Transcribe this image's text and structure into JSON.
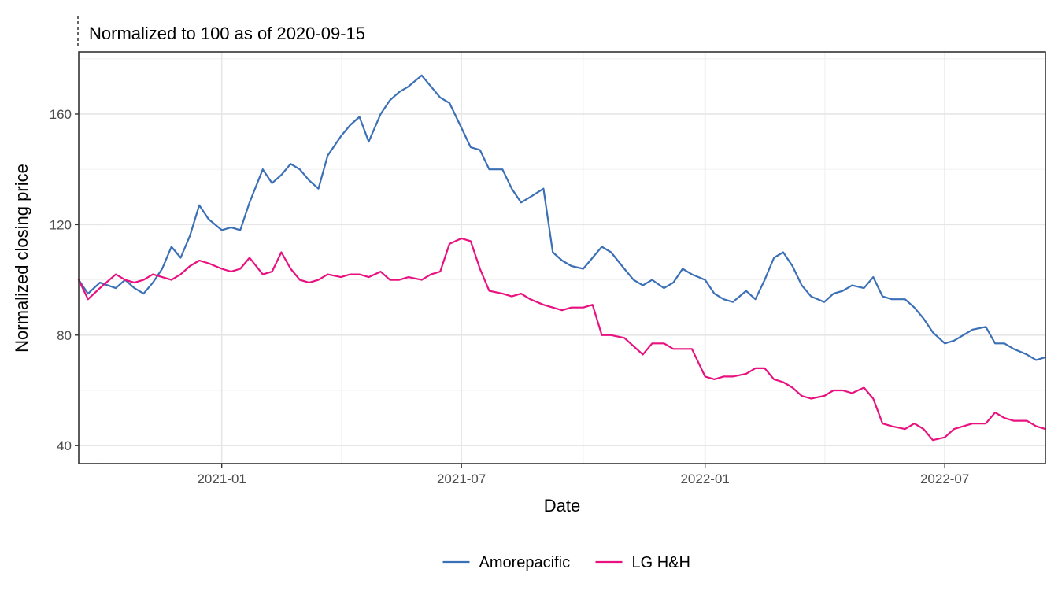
{
  "chart_data": {
    "type": "line",
    "subtitle": "Normalized to 100 as of 2020-09-15",
    "xlabel": "Date",
    "ylabel": "Normalized closing price",
    "xlim": [
      "2020-09-15",
      "2022-09-15"
    ],
    "ylim": [
      33.5,
      182.5
    ],
    "x_ticks": [
      "2021-01-01",
      "2021-07-01",
      "2022-01-01",
      "2022-07-01"
    ],
    "x_tick_labels": [
      "2021-01",
      "2021-07",
      "2022-01",
      "2022-07"
    ],
    "y_ticks": [
      40,
      80,
      120,
      160
    ],
    "y_tick_labels": [
      "40",
      "80",
      "120",
      "160"
    ],
    "grid": true,
    "legend_position": "bottom",
    "series": [
      {
        "name": "Amorepacific",
        "color": "#3b6fb6",
        "x": [
          "2020-09-15",
          "2020-09-22",
          "2020-10-01",
          "2020-10-13",
          "2020-10-20",
          "2020-10-27",
          "2020-11-03",
          "2020-11-10",
          "2020-11-17",
          "2020-11-24",
          "2020-12-01",
          "2020-12-08",
          "2020-12-15",
          "2020-12-22",
          "2021-01-01",
          "2021-01-08",
          "2021-01-15",
          "2021-01-22",
          "2021-02-01",
          "2021-02-08",
          "2021-02-15",
          "2021-02-22",
          "2021-03-01",
          "2021-03-08",
          "2021-03-15",
          "2021-03-22",
          "2021-04-01",
          "2021-04-08",
          "2021-04-15",
          "2021-04-22",
          "2021-05-01",
          "2021-05-08",
          "2021-05-15",
          "2021-05-22",
          "2021-06-01",
          "2021-06-08",
          "2021-06-15",
          "2021-06-22",
          "2021-07-01",
          "2021-07-08",
          "2021-07-15",
          "2021-07-22",
          "2021-08-01",
          "2021-08-08",
          "2021-08-15",
          "2021-08-22",
          "2021-09-01",
          "2021-09-08",
          "2021-09-15",
          "2021-09-22",
          "2021-10-01",
          "2021-10-08",
          "2021-10-15",
          "2021-10-22",
          "2021-11-01",
          "2021-11-08",
          "2021-11-15",
          "2021-11-22",
          "2021-12-01",
          "2021-12-08",
          "2021-12-15",
          "2021-12-22",
          "2022-01-01",
          "2022-01-08",
          "2022-01-15",
          "2022-01-22",
          "2022-02-01",
          "2022-02-08",
          "2022-02-15",
          "2022-02-22",
          "2022-03-01",
          "2022-03-08",
          "2022-03-15",
          "2022-03-22",
          "2022-04-01",
          "2022-04-08",
          "2022-04-15",
          "2022-04-22",
          "2022-05-01",
          "2022-05-08",
          "2022-05-15",
          "2022-05-22",
          "2022-06-01",
          "2022-06-08",
          "2022-06-15",
          "2022-06-22",
          "2022-07-01",
          "2022-07-08",
          "2022-07-15",
          "2022-07-22",
          "2022-08-01",
          "2022-08-08",
          "2022-08-15",
          "2022-08-22",
          "2022-09-01",
          "2022-09-08",
          "2022-09-15"
        ],
        "values": [
          100,
          95,
          99,
          97,
          100,
          97,
          95,
          99,
          104,
          112,
          108,
          116,
          127,
          122,
          118,
          119,
          118,
          128,
          140,
          135,
          138,
          142,
          140,
          136,
          133,
          145,
          152,
          156,
          159,
          150,
          160,
          165,
          168,
          170,
          174,
          170,
          166,
          164,
          155,
          148,
          147,
          140,
          140,
          133,
          128,
          130,
          133,
          110,
          107,
          105,
          104,
          108,
          112,
          110,
          104,
          100,
          98,
          100,
          97,
          99,
          104,
          102,
          100,
          95,
          93,
          92,
          96,
          93,
          100,
          108,
          110,
          105,
          98,
          94,
          92,
          95,
          96,
          98,
          97,
          101,
          94,
          93,
          93,
          90,
          86,
          81,
          77,
          78,
          80,
          82,
          83,
          77,
          77,
          75,
          73,
          71,
          72
        ]
      },
      {
        "name": "LG H&H",
        "color": "#e8117f",
        "x": [
          "2020-09-15",
          "2020-09-22",
          "2020-10-01",
          "2020-10-13",
          "2020-10-20",
          "2020-10-27",
          "2020-11-03",
          "2020-11-10",
          "2020-11-17",
          "2020-11-24",
          "2020-12-01",
          "2020-12-08",
          "2020-12-15",
          "2020-12-22",
          "2021-01-01",
          "2021-01-08",
          "2021-01-15",
          "2021-01-22",
          "2021-02-01",
          "2021-02-08",
          "2021-02-15",
          "2021-02-22",
          "2021-03-01",
          "2021-03-08",
          "2021-03-15",
          "2021-03-22",
          "2021-04-01",
          "2021-04-08",
          "2021-04-15",
          "2021-04-22",
          "2021-05-01",
          "2021-05-08",
          "2021-05-15",
          "2021-05-22",
          "2021-06-01",
          "2021-06-08",
          "2021-06-15",
          "2021-06-22",
          "2021-07-01",
          "2021-07-08",
          "2021-07-15",
          "2021-07-22",
          "2021-08-01",
          "2021-08-08",
          "2021-08-15",
          "2021-08-22",
          "2021-09-01",
          "2021-09-08",
          "2021-09-15",
          "2021-09-22",
          "2021-10-01",
          "2021-10-08",
          "2021-10-15",
          "2021-10-22",
          "2021-11-01",
          "2021-11-08",
          "2021-11-15",
          "2021-11-22",
          "2021-12-01",
          "2021-12-08",
          "2021-12-15",
          "2021-12-22",
          "2022-01-01",
          "2022-01-08",
          "2022-01-15",
          "2022-01-22",
          "2022-02-01",
          "2022-02-08",
          "2022-02-15",
          "2022-02-22",
          "2022-03-01",
          "2022-03-08",
          "2022-03-15",
          "2022-03-22",
          "2022-04-01",
          "2022-04-08",
          "2022-04-15",
          "2022-04-22",
          "2022-05-01",
          "2022-05-08",
          "2022-05-15",
          "2022-05-22",
          "2022-06-01",
          "2022-06-08",
          "2022-06-15",
          "2022-06-22",
          "2022-07-01",
          "2022-07-08",
          "2022-07-15",
          "2022-07-22",
          "2022-08-01",
          "2022-08-08",
          "2022-08-15",
          "2022-08-22",
          "2022-09-01",
          "2022-09-08",
          "2022-09-15"
        ],
        "values": [
          100,
          93,
          97,
          102,
          100,
          99,
          100,
          102,
          101,
          100,
          102,
          105,
          107,
          106,
          104,
          103,
          104,
          108,
          102,
          103,
          110,
          104,
          100,
          99,
          100,
          102,
          101,
          102,
          102,
          101,
          103,
          100,
          100,
          101,
          100,
          102,
          103,
          113,
          115,
          114,
          104,
          96,
          95,
          94,
          95,
          93,
          91,
          90,
          89,
          90,
          90,
          91,
          80,
          80,
          79,
          76,
          73,
          77,
          77,
          75,
          75,
          75,
          65,
          64,
          65,
          65,
          66,
          68,
          68,
          64,
          63,
          61,
          58,
          57,
          58,
          60,
          60,
          59,
          61,
          57,
          48,
          47,
          46,
          48,
          46,
          42,
          43,
          46,
          47,
          48,
          48,
          52,
          50,
          49,
          49,
          47,
          46
        ]
      }
    ]
  }
}
